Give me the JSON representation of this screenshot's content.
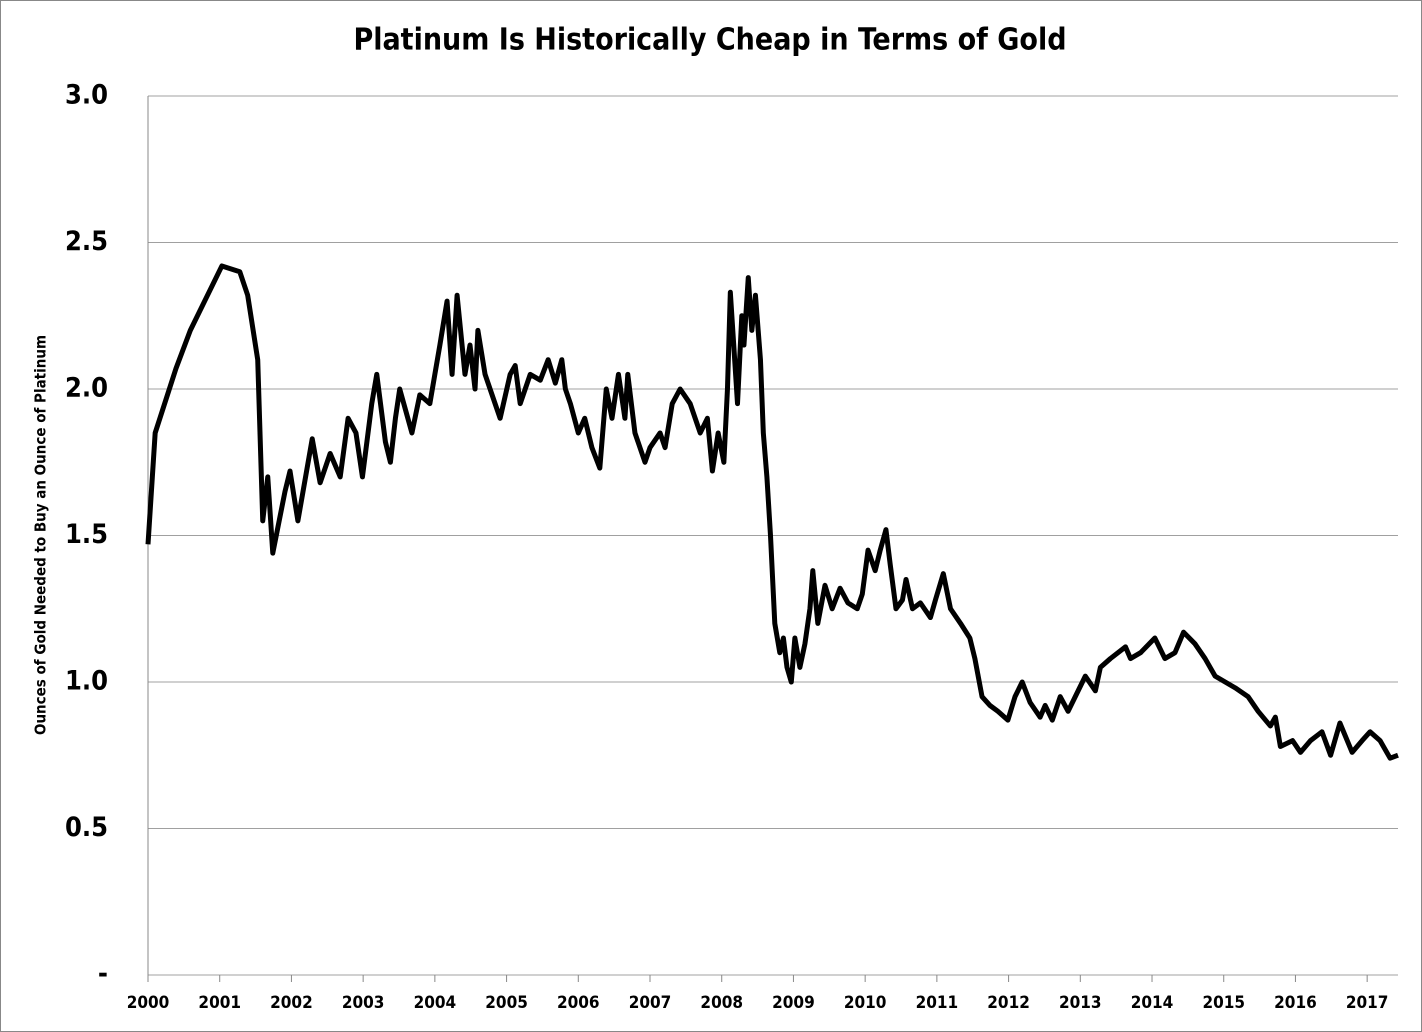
{
  "chart_data": {
    "type": "line",
    "title": "Platinum Is Historically Cheap in Terms of Gold",
    "ylabel": "Ounces of Gold Needed to Buy an Ounce of Platinum",
    "xlim": [
      2000,
      2017.43
    ],
    "xticks": [
      2000,
      2001,
      2002,
      2003,
      2004,
      2005,
      2006,
      2007,
      2008,
      2009,
      2010,
      2011,
      2012,
      2013,
      2014,
      2015,
      2016,
      2017
    ],
    "ylim": [
      0,
      3
    ],
    "yticks": [
      {
        "value": 0,
        "label": "-"
      },
      0.5,
      {
        "value": 1,
        "label": "1.0"
      },
      1.5,
      {
        "value": 2,
        "label": "2.0"
      },
      2.5,
      {
        "value": 3,
        "label": "3.0"
      }
    ],
    "grid": true,
    "color": "#000000",
    "x": [
      2000.0,
      2000.1,
      2000.39,
      2000.59,
      2001.03,
      2001.28,
      2001.39,
      2001.53,
      2001.6,
      2001.67,
      2001.74,
      2001.91,
      2001.98,
      2002.09,
      2002.29,
      2002.4,
      2002.54,
      2002.68,
      2002.79,
      2002.9,
      2002.99,
      2003.12,
      2003.19,
      2003.31,
      2003.38,
      2003.45,
      2003.51,
      2003.68,
      2003.79,
      2003.93,
      2004.0,
      2004.07,
      2004.17,
      2004.24,
      2004.31,
      2004.42,
      2004.49,
      2004.56,
      2004.6,
      2004.7,
      2004.84,
      2004.91,
      2005.05,
      2005.12,
      2005.19,
      2005.33,
      2005.47,
      2005.58,
      2005.68,
      2005.77,
      2005.82,
      2005.89,
      2006.0,
      2006.09,
      2006.19,
      2006.3,
      2006.39,
      2006.47,
      2006.56,
      2006.65,
      2006.69,
      2006.79,
      2006.93,
      2007.0,
      2007.14,
      2007.21,
      2007.31,
      2007.42,
      2007.56,
      2007.7,
      2007.8,
      2007.87,
      2007.95,
      2008.03,
      2008.08,
      2008.12,
      2008.22,
      2008.28,
      2008.31,
      2008.37,
      2008.42,
      2008.47,
      2008.54,
      2008.58,
      2008.63,
      2008.68,
      2008.74,
      2008.81,
      2008.86,
      2008.91,
      2008.97,
      2009.02,
      2009.09,
      2009.16,
      2009.23,
      2009.27,
      2009.34,
      2009.44,
      2009.54,
      2009.65,
      2009.76,
      2009.89,
      2009.96,
      2010.04,
      2010.14,
      2010.21,
      2010.29,
      2010.35,
      2010.43,
      2010.52,
      2010.57,
      2010.66,
      2010.77,
      2010.91,
      2010.98,
      2011.09,
      2011.19,
      2011.33,
      2011.46,
      2011.53,
      2011.63,
      2011.74,
      2011.85,
      2011.99,
      2012.09,
      2012.19,
      2012.3,
      2012.44,
      2012.51,
      2012.61,
      2012.72,
      2012.83,
      2012.93,
      2013.07,
      2013.21,
      2013.28,
      2013.42,
      2013.63,
      2013.7,
      2013.84,
      2014.04,
      2014.18,
      2014.32,
      2014.44,
      2014.6,
      2014.74,
      2014.88,
      2015.02,
      2015.16,
      2015.34,
      2015.48,
      2015.65,
      2015.72,
      2015.79,
      2015.96,
      2016.07,
      2016.21,
      2016.37,
      2016.49,
      2016.62,
      2016.79,
      2016.93,
      2017.04,
      2017.18,
      2017.32,
      2017.43
    ],
    "values": [
      1.47,
      1.85,
      2.07,
      2.2,
      2.42,
      2.4,
      2.32,
      2.1,
      1.55,
      1.7,
      1.44,
      1.65,
      1.72,
      1.55,
      1.83,
      1.68,
      1.78,
      1.7,
      1.9,
      1.85,
      1.7,
      1.95,
      2.05,
      1.82,
      1.75,
      1.9,
      2.0,
      1.85,
      1.98,
      1.95,
      2.05,
      2.15,
      2.3,
      2.05,
      2.32,
      2.05,
      2.15,
      2.0,
      2.2,
      2.05,
      1.95,
      1.9,
      2.05,
      2.08,
      1.95,
      2.05,
      2.03,
      2.1,
      2.02,
      2.1,
      2.0,
      1.95,
      1.85,
      1.9,
      1.8,
      1.73,
      2.0,
      1.9,
      2.05,
      1.9,
      2.05,
      1.85,
      1.75,
      1.8,
      1.85,
      1.8,
      1.95,
      2.0,
      1.95,
      1.85,
      1.9,
      1.72,
      1.85,
      1.75,
      2.0,
      2.33,
      1.95,
      2.25,
      2.15,
      2.38,
      2.2,
      2.32,
      2.1,
      1.85,
      1.7,
      1.5,
      1.2,
      1.1,
      1.15,
      1.05,
      1.0,
      1.15,
      1.05,
      1.13,
      1.25,
      1.38,
      1.2,
      1.33,
      1.25,
      1.32,
      1.27,
      1.25,
      1.3,
      1.45,
      1.38,
      1.45,
      1.52,
      1.4,
      1.25,
      1.28,
      1.35,
      1.25,
      1.27,
      1.22,
      1.28,
      1.37,
      1.25,
      1.2,
      1.15,
      1.08,
      0.95,
      0.92,
      0.9,
      0.87,
      0.95,
      1.0,
      0.93,
      0.88,
      0.92,
      0.87,
      0.95,
      0.9,
      0.95,
      1.02,
      0.97,
      1.05,
      1.08,
      1.12,
      1.08,
      1.1,
      1.15,
      1.08,
      1.1,
      1.17,
      1.13,
      1.08,
      1.02,
      1.0,
      0.98,
      0.95,
      0.9,
      0.85,
      0.88,
      0.78,
      0.8,
      0.76,
      0.8,
      0.83,
      0.75,
      0.86,
      0.76,
      0.8,
      0.83,
      0.8,
      0.74,
      0.75
    ]
  }
}
